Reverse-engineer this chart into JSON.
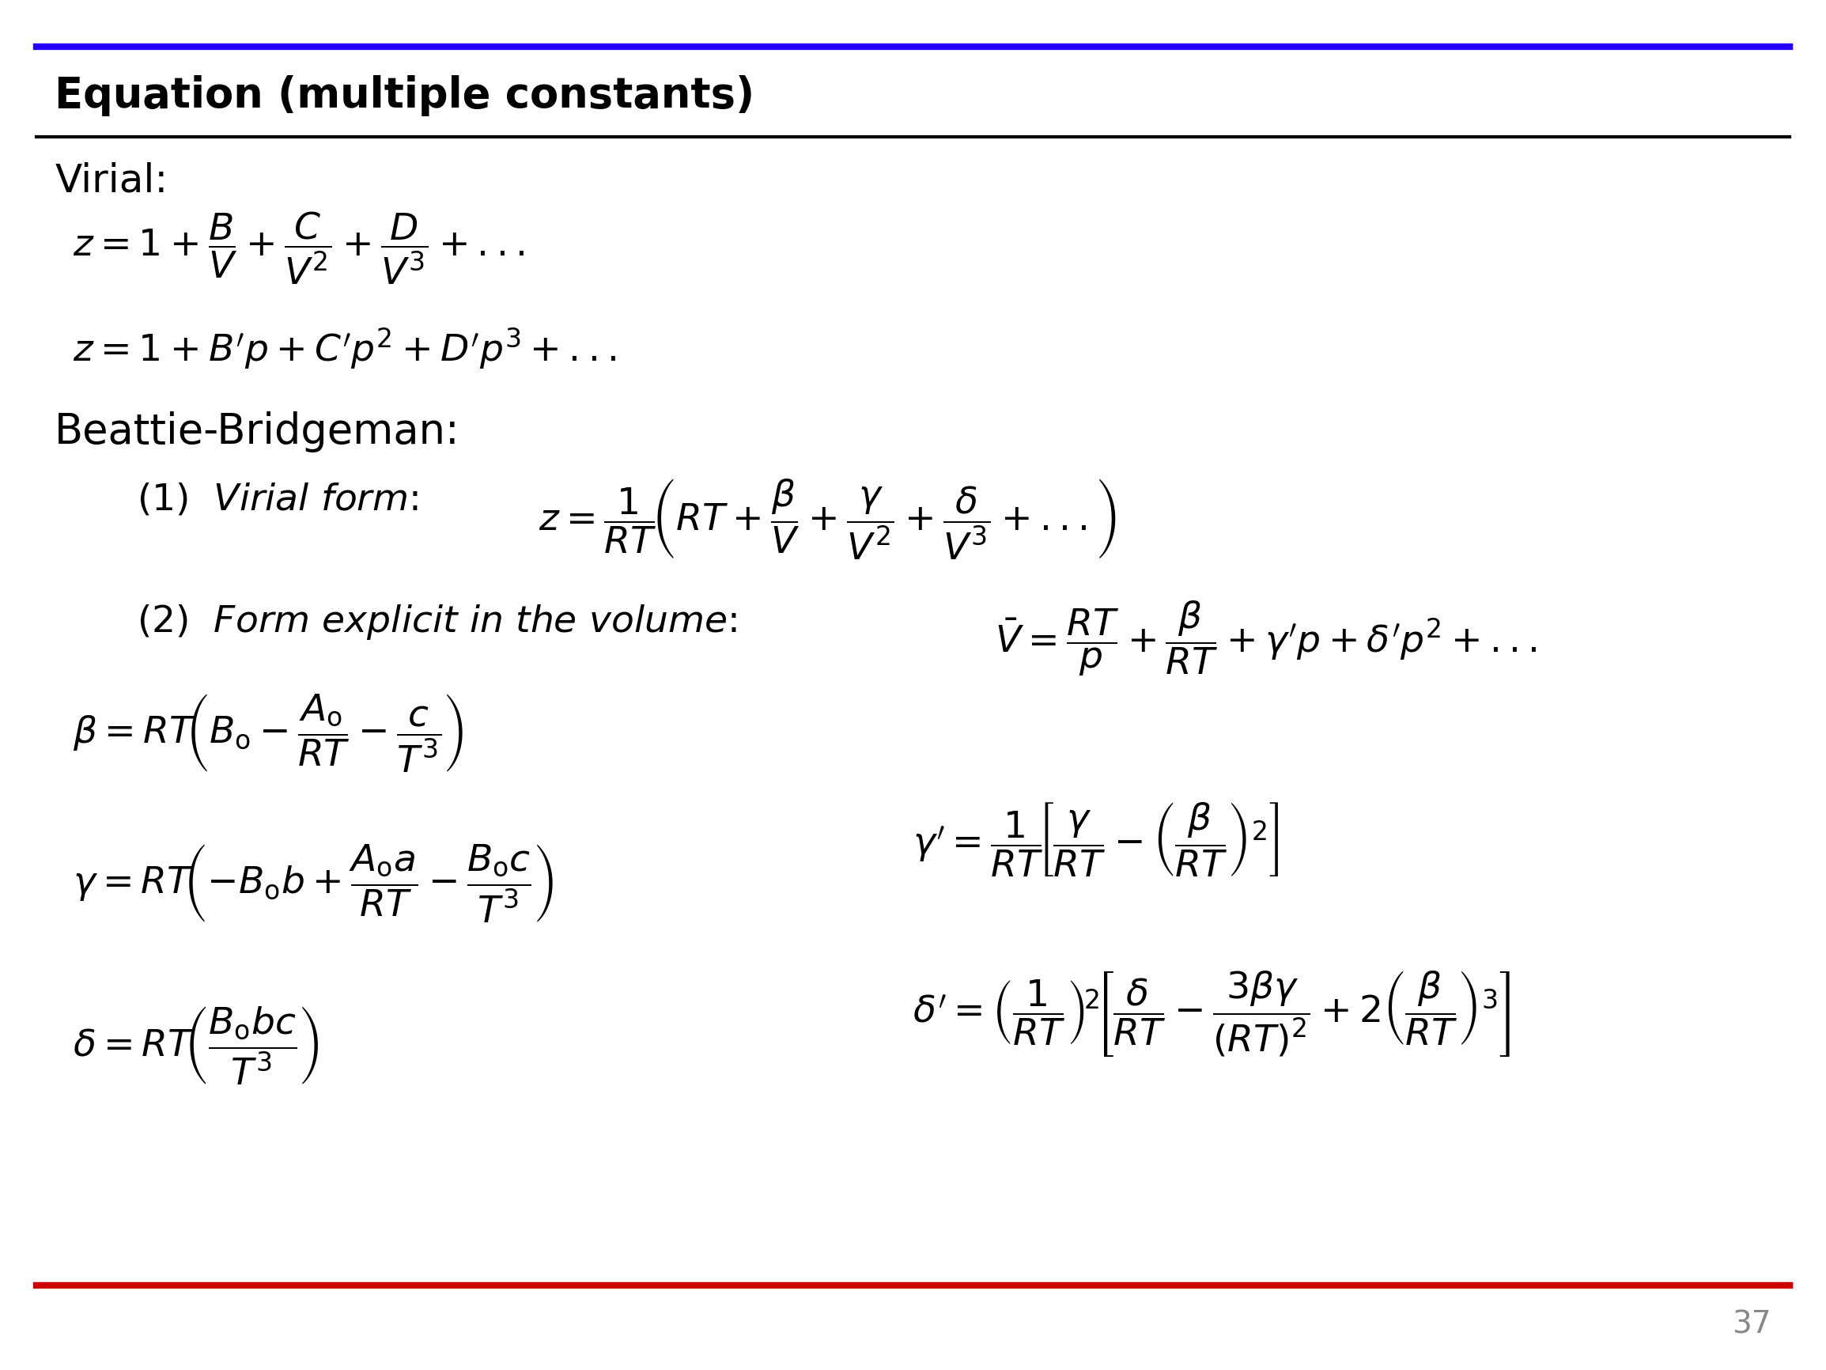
{
  "title": "Equation (multiple constants)",
  "page_number": "37",
  "bg_color": "#ffffff",
  "title_color": "#000000",
  "top_line_color": "#2600ff",
  "bottom_line_color": "#cc0000",
  "header_line_color": "#000000",
  "virial_label": "Virial:",
  "bb_label": "Beattie-Bridgeman:"
}
